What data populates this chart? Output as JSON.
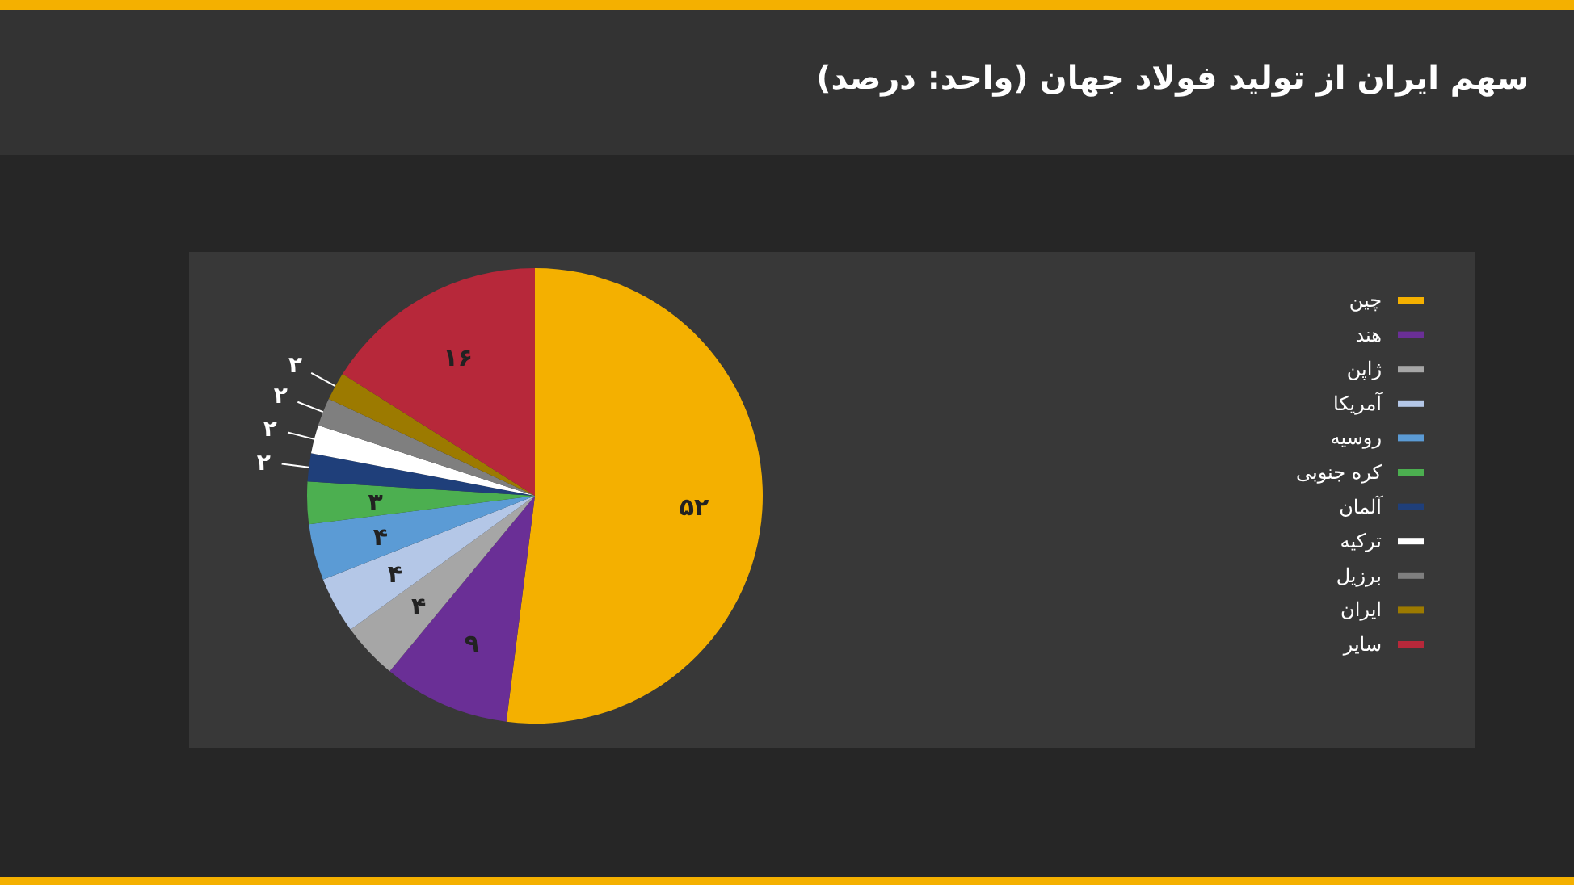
{
  "chart_data": {
    "type": "pie",
    "title": "سهم ایران از تولید فولاد جهان (واحد: درصد)",
    "categories": [
      "چین",
      "هند",
      "ژاپن",
      "آمریکا",
      "روسیه",
      "کره جنوبی",
      "آلمان",
      "ترکیه",
      "برزیل",
      "ایران",
      "سایر"
    ],
    "values": [
      52,
      9,
      4,
      4,
      4,
      3,
      2,
      2,
      2,
      2,
      16
    ],
    "value_labels": [
      "۵۲",
      "۹",
      "۴",
      "۴",
      "۴",
      "۳",
      "۲",
      "۲",
      "۲",
      "۲",
      "۱۶"
    ],
    "colors": [
      "#f4b000",
      "#6a2f96",
      "#a6a6a6",
      "#b4c7e7",
      "#5b9bd5",
      "#4caf50",
      "#1f3f7a",
      "#ffffff",
      "#7f7f7f",
      "#9c7a00",
      "#b7283a"
    ],
    "legend": "right"
  }
}
